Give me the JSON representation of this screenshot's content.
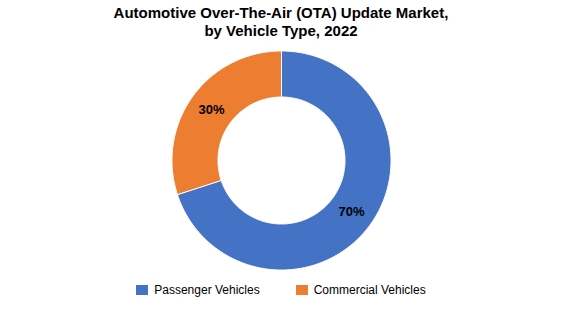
{
  "chart_data": {
    "type": "donut",
    "title": "Automotive Over-The-Air (OTA) Update Market,\nby Vehicle Type, 2022",
    "categories": [
      "Passenger Vehicles",
      "Commercial Vehicles"
    ],
    "values": [
      70,
      30
    ],
    "value_labels": [
      "70%",
      "30%"
    ],
    "colors": [
      "#4472C4",
      "#ED7D31"
    ],
    "data_labels": true,
    "legend": "bottom"
  }
}
